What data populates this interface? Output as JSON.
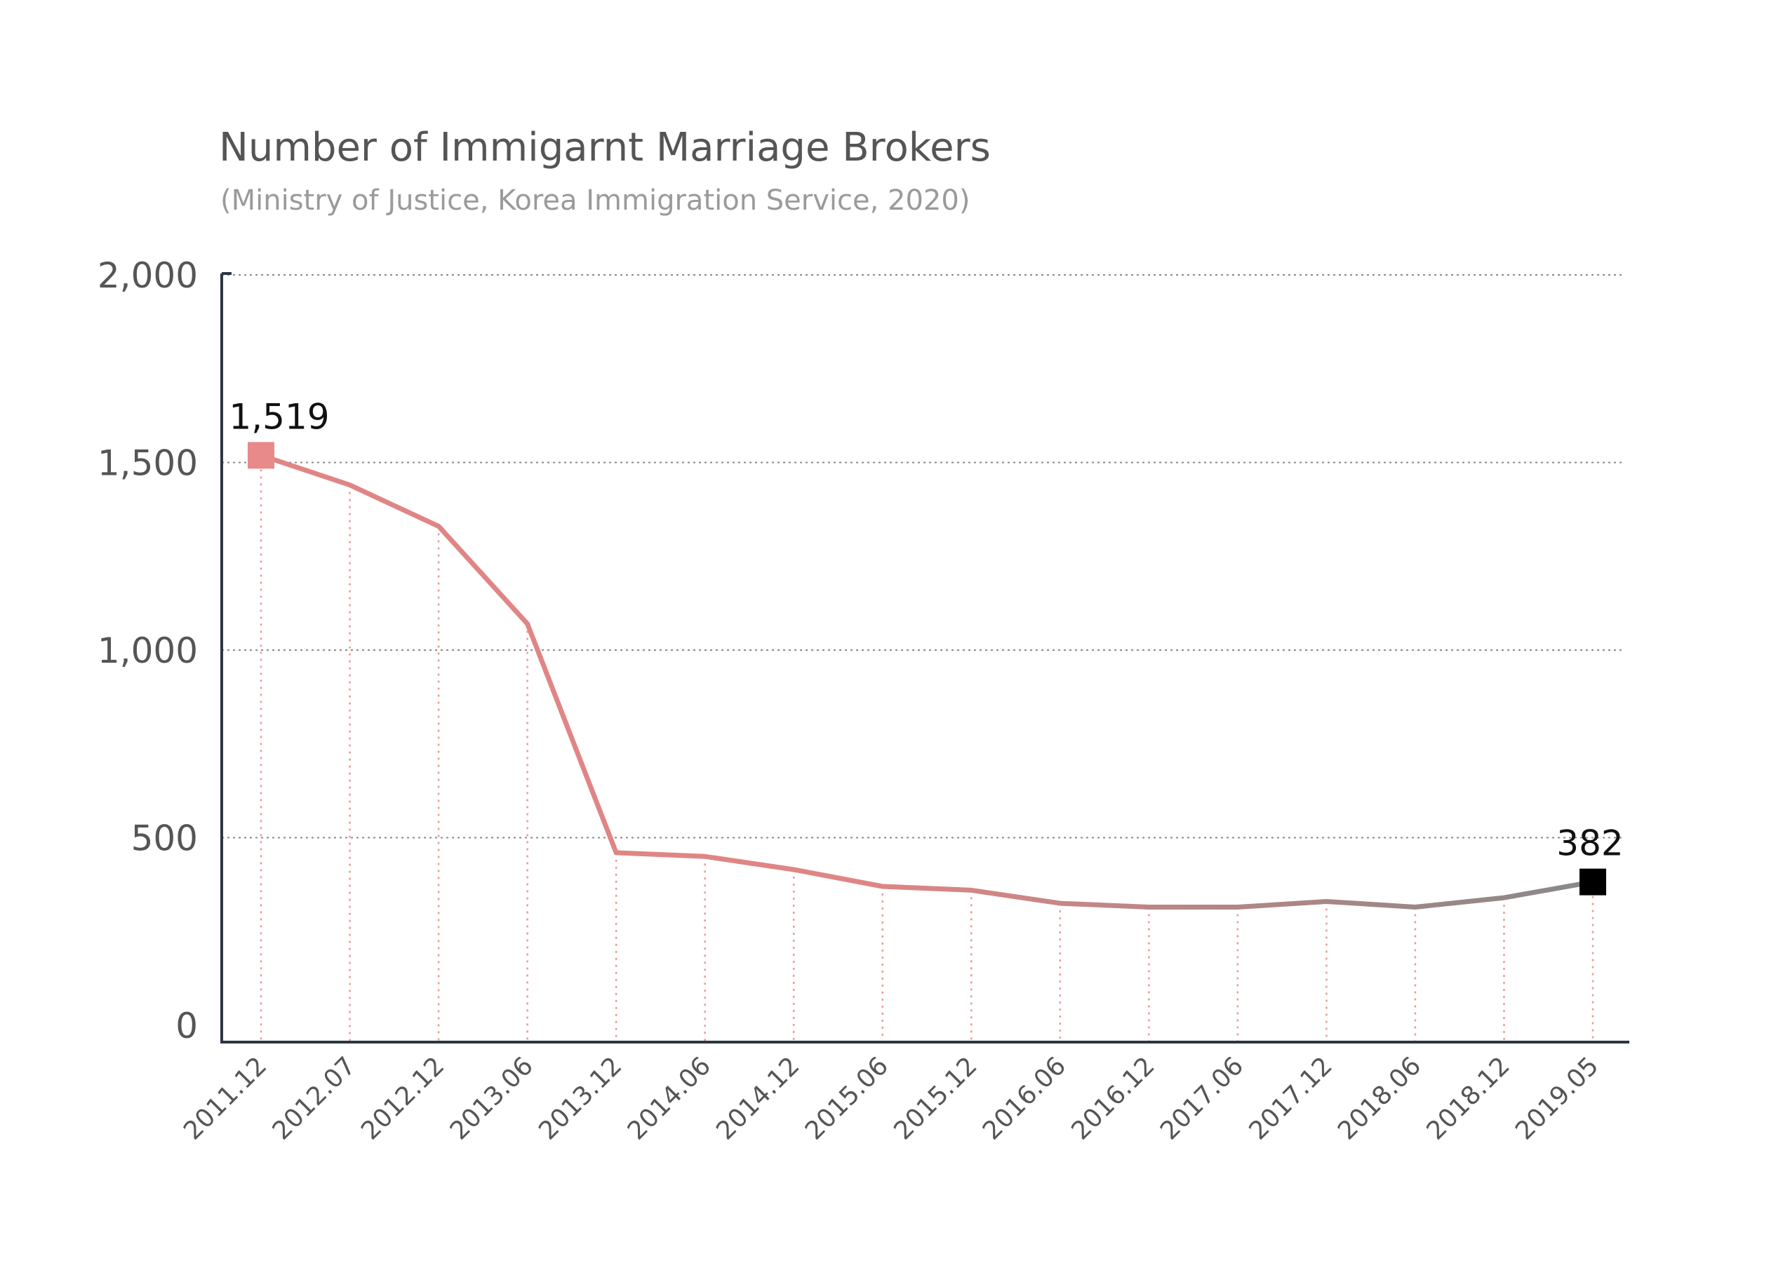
{
  "header": {
    "title": "Number of Immigarnt Marriage Brokers",
    "subtitle": "(Ministry of Justice, Korea Immigration Service, 2020)"
  },
  "chart_data": {
    "type": "line",
    "title": "Number of Immigarnt Marriage Brokers",
    "subtitle": "(Ministry of Justice, Korea Immigration Service, 2020)",
    "xlabel": "",
    "ylabel": "",
    "categories": [
      "2011.12",
      "2012.07",
      "2012.12",
      "2013.06",
      "2013.12",
      "2014.06",
      "2014.12",
      "2015.06",
      "2015.12",
      "2016.06",
      "2016.12",
      "2017.06",
      "2017.12",
      "2018.06",
      "2018.12",
      "2019.05"
    ],
    "series": [
      {
        "values": [
          1519,
          1440,
          1330,
          1070,
          460,
          450,
          415,
          370,
          360,
          325,
          315,
          315,
          330,
          315,
          340,
          382
        ]
      }
    ],
    "ylim": [
      0,
      2000
    ],
    "yticks": [
      0,
      500,
      1000,
      1500,
      2000
    ],
    "ytick_labels": [
      "0",
      "500",
      "1,000",
      "1,500",
      "2,000"
    ],
    "grid": true,
    "annotations": [
      {
        "index": 0,
        "label": "1,519"
      },
      {
        "index": 15,
        "label": "382"
      }
    ],
    "colors": {
      "line_start": "#e08585",
      "line_end": "#888888",
      "start_marker": "#e88a8a",
      "end_marker": "#000000",
      "drop_lines": "#ec9a9a",
      "gridlines": "#888888",
      "axis": "#2d3641"
    }
  }
}
